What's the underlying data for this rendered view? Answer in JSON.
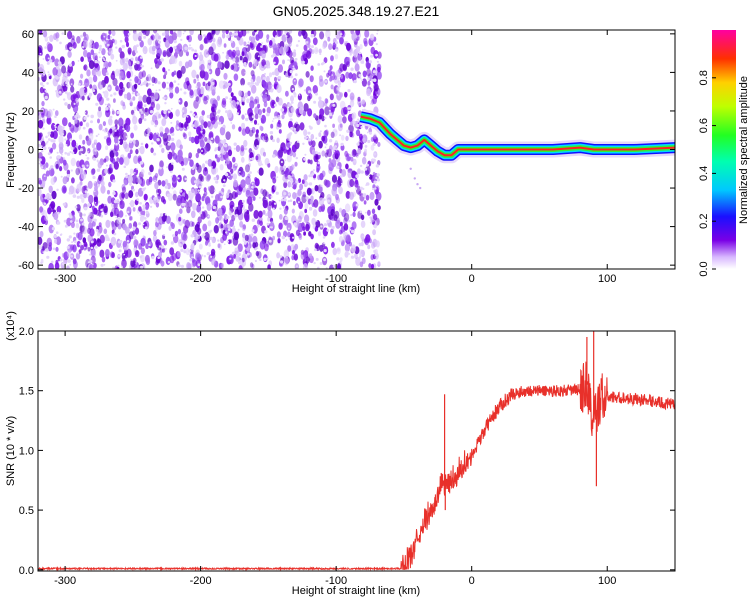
{
  "title": "GN05.2025.348.19.27.E21",
  "colors": {
    "signal_line": "#e8302a",
    "noise_purple": "#8a2be2",
    "ridge_red": "#ff2020",
    "ridge_green": "#33ee33",
    "ridge_blue": "#1010ff"
  },
  "chart_data": [
    {
      "type": "heatmap",
      "name": "spectrogram",
      "title": "GN05.2025.348.19.27.E21",
      "xlabel": "Height of straight line (km)",
      "ylabel": "Frequency (Hz)",
      "xlim": [
        -320,
        150
      ],
      "ylim": [
        -62,
        62
      ],
      "x_ticks": [
        -300,
        -200,
        -100,
        0,
        100
      ],
      "y_ticks": [
        -60,
        -40,
        -20,
        0,
        20,
        40,
        60
      ],
      "noise_region_x": [
        -320,
        -68
      ],
      "ridge": {
        "x": [
          -82,
          -75,
          -68,
          -60,
          -55,
          -50,
          -45,
          -40,
          -35,
          -30,
          -25,
          -20,
          -15,
          -10,
          0,
          20,
          40,
          60,
          80,
          90,
          100,
          120,
          150
        ],
        "y": [
          17,
          16,
          14,
          8,
          5,
          2,
          1,
          2,
          5,
          2,
          -1,
          -3,
          -3,
          0,
          0,
          0,
          0,
          0,
          1,
          0,
          0,
          0,
          1
        ]
      },
      "colorbar": {
        "label": "Normalized spectral amplitude",
        "range": [
          0,
          1
        ],
        "ticks": [
          0.0,
          0.2,
          0.4,
          0.6,
          0.8
        ]
      }
    },
    {
      "type": "line",
      "name": "snr",
      "xlabel": "Height of straight line (km)",
      "ylabel": "SNR (10 * v/v)",
      "scale_note": "(x10⁴)",
      "xlim": [
        -320,
        150
      ],
      "ylim": [
        -0.01,
        2.0
      ],
      "x_ticks": [
        -300,
        -200,
        -100,
        0,
        100
      ],
      "y_ticks": [
        0.0,
        0.5,
        1.0,
        1.5,
        2.0
      ],
      "series": [
        {
          "name": "SNR",
          "x": [
            -320,
            -50,
            -47,
            -45,
            -42,
            -40,
            -38,
            -35,
            -30,
            -25,
            -22,
            -20,
            -15,
            -10,
            -5,
            0,
            5,
            10,
            15,
            20,
            25,
            30,
            40,
            50,
            60,
            70,
            80,
            85,
            88,
            90,
            92,
            95,
            100,
            110,
            120,
            130,
            140,
            150
          ],
          "y": [
            0.01,
            0.01,
            0.08,
            0.12,
            0.2,
            0.26,
            0.3,
            0.4,
            0.5,
            0.62,
            0.75,
            0.7,
            0.74,
            0.82,
            0.9,
            0.96,
            1.06,
            1.18,
            1.28,
            1.36,
            1.42,
            1.47,
            1.5,
            1.5,
            1.5,
            1.5,
            1.51,
            1.55,
            1.35,
            1.25,
            1.3,
            1.45,
            1.45,
            1.44,
            1.43,
            1.42,
            1.4,
            1.38
          ]
        }
      ],
      "spikes": [
        {
          "x": -20,
          "y": 1.47
        },
        {
          "x": -19.5,
          "y": 0.5
        },
        {
          "x": 90,
          "y": 2.0
        },
        {
          "x": 92,
          "y": 0.7
        },
        {
          "x": 85,
          "y": 1.95
        }
      ]
    }
  ]
}
